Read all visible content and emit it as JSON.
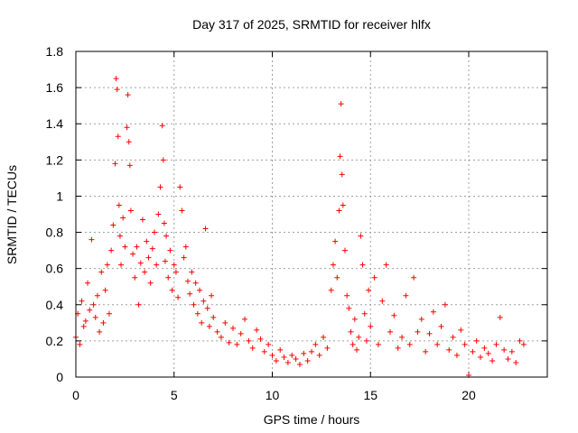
{
  "chart_data": {
    "type": "scatter",
    "title": "Day 317 of 2025, SRMTID for receiver hlfx",
    "xlabel": "GPS time / hours",
    "ylabel": "SRMTID / TECUs",
    "xlim": [
      0,
      24
    ],
    "ylim": [
      0,
      1.8
    ],
    "x_ticks": [
      0,
      5,
      10,
      15,
      20
    ],
    "x_tick_labels": [
      "0",
      "5",
      "10",
      "15",
      "20"
    ],
    "y_ticks": [
      0,
      0.2,
      0.4,
      0.6,
      0.8,
      1.0,
      1.2,
      1.4,
      1.6,
      1.8
    ],
    "y_tick_labels": [
      "0",
      "0.2",
      "0.4",
      "0.6",
      "0.8",
      "1",
      "1.2",
      "1.4",
      "1.6",
      "1.8"
    ],
    "grid": true,
    "marker": "+",
    "color": "#ff0000",
    "series": [
      {
        "name": "SRMTID",
        "x": [
          0.0,
          0.1,
          0.2,
          0.3,
          0.4,
          0.5,
          0.6,
          0.7,
          0.8,
          0.9,
          1.0,
          1.1,
          1.2,
          1.3,
          1.4,
          1.5,
          1.6,
          1.7,
          1.8,
          1.9,
          2.0,
          2.05,
          2.1,
          2.15,
          2.2,
          2.25,
          2.3,
          2.4,
          2.5,
          2.6,
          2.65,
          2.7,
          2.75,
          2.8,
          2.9,
          3.0,
          3.1,
          3.2,
          3.3,
          3.4,
          3.5,
          3.6,
          3.7,
          3.8,
          3.9,
          4.0,
          4.1,
          4.2,
          4.3,
          4.4,
          4.45,
          4.5,
          4.55,
          4.6,
          4.7,
          4.8,
          4.9,
          5.0,
          5.1,
          5.2,
          5.3,
          5.4,
          5.5,
          5.6,
          5.7,
          5.8,
          5.9,
          6.0,
          6.1,
          6.2,
          6.3,
          6.4,
          6.5,
          6.6,
          6.7,
          6.8,
          6.9,
          7.0,
          7.2,
          7.4,
          7.6,
          7.8,
          8.0,
          8.2,
          8.4,
          8.6,
          8.8,
          9.0,
          9.2,
          9.4,
          9.6,
          9.8,
          10.0,
          10.2,
          10.4,
          10.6,
          10.8,
          11.0,
          11.2,
          11.4,
          11.6,
          11.8,
          12.0,
          12.2,
          12.4,
          12.6,
          12.8,
          13.0,
          13.1,
          13.2,
          13.3,
          13.4,
          13.45,
          13.5,
          13.55,
          13.6,
          13.7,
          13.8,
          13.9,
          14.0,
          14.1,
          14.2,
          14.3,
          14.4,
          14.5,
          14.6,
          14.7,
          14.8,
          14.9,
          15.0,
          15.2,
          15.4,
          15.6,
          15.8,
          16.0,
          16.2,
          16.4,
          16.6,
          16.8,
          17.0,
          17.2,
          17.4,
          17.6,
          17.8,
          18.0,
          18.2,
          18.4,
          18.6,
          18.8,
          19.0,
          19.2,
          19.4,
          19.6,
          19.8,
          20.0,
          20.2,
          20.4,
          20.6,
          20.8,
          21.0,
          21.2,
          21.4,
          21.6,
          21.8,
          22.0,
          22.2,
          22.4,
          22.6,
          22.8
        ],
        "values": [
          0.22,
          0.35,
          0.18,
          0.42,
          0.28,
          0.31,
          0.52,
          0.37,
          0.76,
          0.4,
          0.33,
          0.45,
          0.25,
          0.58,
          0.3,
          0.48,
          0.62,
          0.35,
          0.7,
          0.84,
          1.18,
          1.65,
          1.59,
          1.33,
          0.95,
          0.78,
          0.62,
          0.88,
          0.72,
          1.38,
          1.56,
          1.3,
          1.17,
          0.92,
          0.68,
          0.55,
          0.72,
          0.4,
          0.63,
          0.87,
          0.58,
          0.75,
          0.66,
          0.52,
          0.71,
          0.8,
          0.62,
          0.9,
          1.05,
          1.39,
          1.2,
          0.85,
          0.64,
          0.78,
          0.55,
          0.7,
          0.48,
          0.62,
          0.58,
          0.44,
          1.05,
          0.92,
          0.66,
          0.72,
          0.53,
          0.46,
          0.58,
          0.4,
          0.52,
          0.35,
          0.48,
          0.3,
          0.42,
          0.82,
          0.38,
          0.28,
          0.45,
          0.33,
          0.25,
          0.22,
          0.3,
          0.19,
          0.27,
          0.18,
          0.24,
          0.32,
          0.2,
          0.16,
          0.26,
          0.21,
          0.14,
          0.18,
          0.12,
          0.09,
          0.15,
          0.11,
          0.08,
          0.12,
          0.1,
          0.07,
          0.13,
          0.09,
          0.14,
          0.18,
          0.12,
          0.22,
          0.16,
          0.48,
          0.62,
          0.75,
          0.55,
          0.92,
          1.22,
          1.51,
          1.12,
          0.95,
          0.7,
          0.45,
          0.38,
          0.25,
          0.18,
          0.32,
          0.15,
          0.22,
          0.78,
          0.62,
          0.35,
          0.2,
          0.48,
          0.28,
          0.55,
          0.18,
          0.42,
          0.62,
          0.25,
          0.34,
          0.16,
          0.22,
          0.45,
          0.18,
          0.55,
          0.25,
          0.32,
          0.14,
          0.24,
          0.36,
          0.18,
          0.28,
          0.4,
          0.15,
          0.22,
          0.12,
          0.26,
          0.18,
          0.01,
          0.14,
          0.2,
          0.11,
          0.16,
          0.13,
          0.09,
          0.18,
          0.33,
          0.15,
          0.1,
          0.14,
          0.08,
          0.2,
          0.18
        ]
      }
    ]
  }
}
